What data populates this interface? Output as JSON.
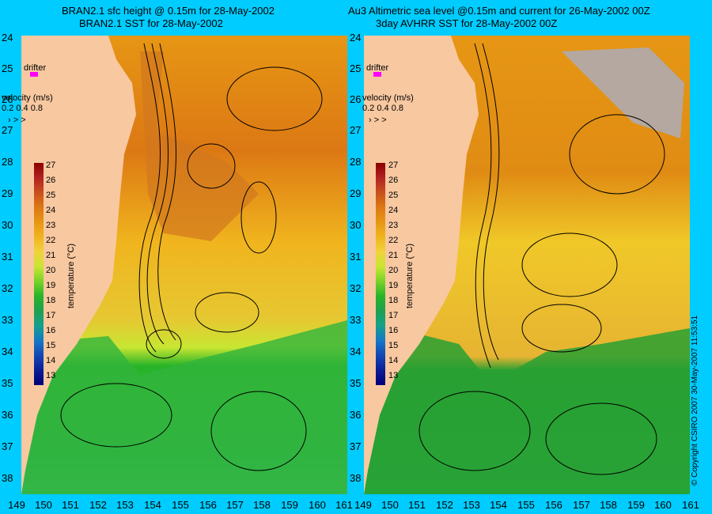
{
  "left_panel": {
    "title_line1": "BRAN2.1 sfc height @ 0.15m for 28-May-2002",
    "title_line2": "BRAN2.1 SST for 28-May-2002"
  },
  "right_panel": {
    "title_line1": "Au3 Altimetric sea level  @0.15m and current for 26-May-2002 00Z",
    "title_line2": "3day AVHRR SST for 28-May-2002 00Z"
  },
  "y_ticks": [
    "24",
    "25",
    "26",
    "27",
    "28",
    "29",
    "30",
    "31",
    "32",
    "33",
    "34",
    "35",
    "36",
    "37",
    "38"
  ],
  "x_ticks": [
    "149",
    "150",
    "151",
    "152",
    "153",
    "154",
    "155",
    "156",
    "157",
    "158",
    "159",
    "160",
    "161"
  ],
  "drifter_label": "drifter",
  "velocity": {
    "label": "velocity (m/s)",
    "values": "0.2 0.4 0.8"
  },
  "colorbar": {
    "title": "temperature (°C)",
    "ticks": [
      "27",
      "26",
      "25",
      "24",
      "23",
      "22",
      "21",
      "20",
      "19",
      "18",
      "17",
      "16",
      "15",
      "14",
      "13"
    ],
    "colors": [
      "#8b0000",
      "#b22222",
      "#c8501e",
      "#dc7814",
      "#e69614",
      "#f0b41e",
      "#f0d23c",
      "#c8e632",
      "#78d228",
      "#28b428",
      "#1ea050",
      "#14a08c",
      "#1478c8",
      "#1446b4",
      "#0a1e96",
      "#000078"
    ]
  },
  "copyright": "© Copyright CSIRO 2007   30-May-2007 11:53:51",
  "colors": {
    "background": "#00ccff",
    "land": "#f8c8a0",
    "cloud": "#b4a8a0",
    "drifter": "#ff00ff"
  }
}
